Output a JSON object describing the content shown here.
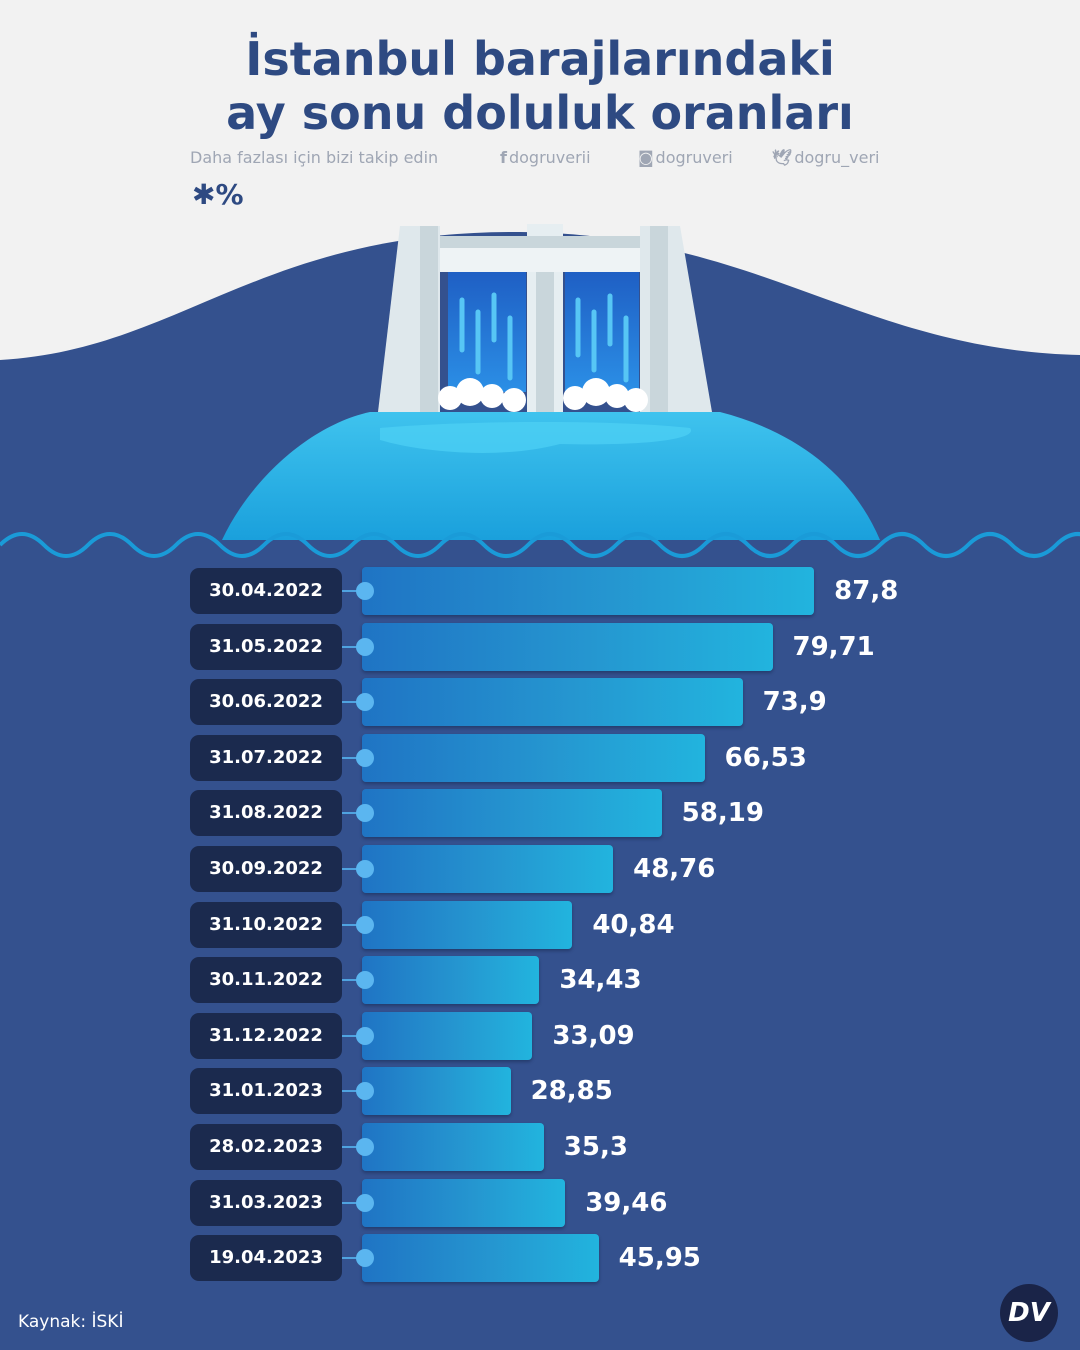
{
  "title_line1": "İstanbul barajlarındaki",
  "title_line2": "ay sonu doluluk oranları",
  "social": {
    "follow_text": "Daha fazlası için bizi takip edin",
    "facebook": "dogruverii",
    "instagram": "dogruveri",
    "twitter": "dogru_veri"
  },
  "unit": "✱%",
  "source": "Kaynak: İSKİ",
  "logo_text": "DV",
  "colors": {
    "background_top": "#f2f2f2",
    "background_main": "#34518e",
    "title": "#2e4a82",
    "date_pill": "#1b2a4e",
    "bar_start": "#1f74c4",
    "bar_end": "#22b4de"
  },
  "chart_data": {
    "type": "bar",
    "orientation": "horizontal",
    "title": "İstanbul barajlarındaki ay sonu doluluk oranları",
    "unit": "%",
    "categories": [
      "30.04.2022",
      "31.05.2022",
      "30.06.2022",
      "31.07.2022",
      "31.08.2022",
      "30.09.2022",
      "31.10.2022",
      "30.11.2022",
      "31.12.2022",
      "31.01.2023",
      "28.02.2023",
      "31.03.2023",
      "19.04.2023"
    ],
    "values": [
      87.8,
      79.71,
      73.9,
      66.53,
      58.19,
      48.76,
      40.84,
      34.43,
      33.09,
      28.85,
      35.3,
      39.46,
      45.95
    ],
    "labels": [
      "87,8",
      "79,71",
      "73,9",
      "66,53",
      "58,19",
      "48,76",
      "40,84",
      "34,43",
      "33,09",
      "28,85",
      "35,3",
      "39,46",
      "45,95"
    ],
    "xlim": [
      0,
      100
    ],
    "grid": false,
    "legend": "none"
  }
}
